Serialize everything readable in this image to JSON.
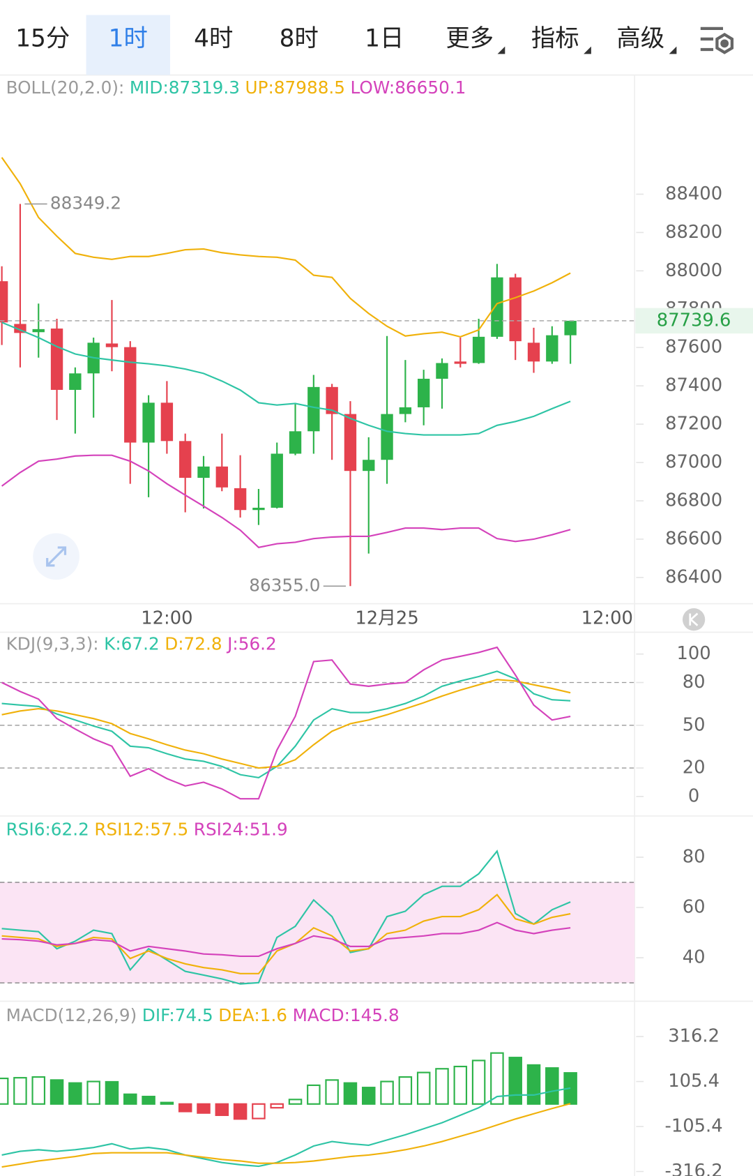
{
  "tabs": {
    "items": [
      "15分",
      "1时",
      "4时",
      "8时",
      "1日",
      "更多",
      "指标",
      "高级"
    ],
    "selected": 1
  },
  "chart_data": [
    {
      "type": "candlestick",
      "indicator": "BOLL(20,2.0):",
      "xlim": [
        -0.1,
        34.5
      ],
      "xticks": [
        {
          "value": 9,
          "label": "12:00"
        },
        {
          "value": 21,
          "label": "12月25"
        },
        {
          "value": 33,
          "label": "12:00"
        }
      ],
      "ylim": [
        86263,
        89022
      ],
      "yticks": [
        86400,
        86600,
        86800,
        87000,
        87200,
        87400,
        87600,
        87800,
        88000,
        88200,
        88400
      ],
      "up_color": "#2db34a",
      "down_color": "#e5414e",
      "open": [
        87946,
        87723,
        87680,
        87699,
        87379,
        87465,
        87621,
        87602,
        87104,
        87312,
        87112,
        86920,
        86979,
        86866,
        86752,
        86764,
        87046,
        87163,
        87394,
        87253,
        86956,
        87014,
        87253,
        87288,
        87437,
        87527,
        87519,
        87656,
        87966,
        87625,
        87527,
        87664
      ],
      "high": [
        88024,
        88349.2,
        87829,
        87750,
        87496,
        87652,
        87848,
        87633,
        87351,
        87425,
        87151,
        87034,
        87151,
        87038,
        86862,
        87104,
        87308,
        87457,
        87410,
        87320,
        87132,
        87660,
        87535,
        87484,
        87543,
        87652,
        87750,
        88036,
        87985,
        87703,
        87711,
        87739.6
      ],
      "low": [
        87613,
        87496,
        87547,
        87222,
        87151,
        87234,
        87476,
        86889,
        86819,
        87046,
        86740,
        86760,
        86850,
        86713,
        86674,
        86760,
        87038,
        87046,
        87014,
        86355.0,
        86525,
        86889,
        87210,
        87194,
        87281,
        87496,
        87515,
        87645,
        87535,
        87468,
        87515,
        87515
      ],
      "close": [
        87731,
        87676,
        87696,
        87379,
        87465,
        87625,
        87602,
        87104,
        87312,
        87112,
        86920,
        86979,
        86870,
        86752,
        86764,
        87046,
        87163,
        87394,
        87253,
        86956,
        87014,
        87253,
        87288,
        87437,
        87519,
        87515,
        87656,
        87966,
        87633,
        87527,
        87664,
        87739.6
      ],
      "series": [
        {
          "name": "MID:87319.3",
          "color": "#2ec4a5",
          "values": [
            87731,
            87692,
            87652,
            87605,
            87566,
            87547,
            87535,
            87523,
            87515,
            87504,
            87488,
            87465,
            87425,
            87378,
            87312,
            87300,
            87308,
            87288,
            87273,
            87230,
            87194,
            87163,
            87151,
            87144,
            87144,
            87144,
            87151,
            87194,
            87214,
            87241,
            87281,
            87319.3
          ]
        },
        {
          "name": "UP:87988.5",
          "color": "#f0b10a",
          "values": [
            88592,
            88455,
            88279,
            88181,
            88091,
            88071,
            88060,
            88075,
            88075,
            88091,
            88110,
            88114,
            88095,
            88083,
            88075,
            88071,
            88056,
            87977,
            87966,
            87856,
            87778,
            87711,
            87660,
            87672,
            87680,
            87656,
            87692,
            87829,
            87860,
            87895,
            87938,
            87988.5
          ]
        },
        {
          "name": "LOW:86650.1",
          "color": "#d442bb",
          "values": [
            86877,
            86948,
            87007,
            87018,
            87034,
            87038,
            87038,
            87007,
            86956,
            86889,
            86830,
            86772,
            86713,
            86647,
            86557,
            86576,
            86584,
            86603,
            86611,
            86615,
            86615,
            86635,
            86658,
            86658,
            86650,
            86658,
            86658,
            86603,
            86588,
            86600,
            86623,
            86650.1
          ]
        }
      ],
      "max_label": 88349.2,
      "min_label": {
        "value": 86355.0,
        "label": "86355.0"
      },
      "last_price": 87739.6
    },
    {
      "type": "line",
      "indicator": "KDJ(9,3,3):",
      "ylim": [
        -13.7,
        115.3
      ],
      "yticks": [
        0,
        20,
        50,
        80,
        100
      ],
      "levels": [
        20,
        50,
        80
      ],
      "series": [
        {
          "name": "K:67.2",
          "color": "#2ec4a5",
          "values": [
            65.3,
            64.2,
            63.2,
            57.9,
            53.7,
            49.5,
            45.8,
            35.3,
            34.2,
            30.0,
            26.3,
            24.7,
            21.1,
            15.3,
            13.2,
            21.1,
            35.3,
            53.7,
            61.6,
            58.9,
            58.9,
            61.6,
            65.3,
            70.5,
            77.4,
            81.1,
            84.2,
            87.9,
            82.6,
            72.1,
            67.9,
            67.2
          ]
        },
        {
          "name": "D:72.8",
          "color": "#f0b10a",
          "values": [
            57.4,
            60.0,
            61.6,
            60.0,
            57.4,
            54.7,
            51.1,
            44.2,
            40.5,
            36.3,
            32.6,
            30.0,
            26.3,
            23.2,
            20.0,
            21.1,
            25.8,
            36.3,
            45.8,
            51.1,
            53.7,
            57.4,
            61.6,
            65.8,
            70.5,
            74.7,
            78.4,
            82.1,
            81.1,
            78.4,
            75.8,
            72.8
          ]
        },
        {
          "name": "J:56.2",
          "color": "#d442bb",
          "values": [
            80.0,
            73.7,
            68.4,
            54.7,
            47.4,
            40.5,
            35.3,
            14.2,
            19.5,
            12.6,
            7.4,
            10.0,
            5.3,
            -1.6,
            -1.6,
            32.6,
            56.3,
            94.7,
            95.8,
            78.9,
            77.4,
            78.9,
            80.0,
            88.9,
            95.8,
            98.4,
            101.1,
            104.7,
            85.3,
            64.2,
            53.7,
            56.2
          ]
        }
      ]
    },
    {
      "type": "line",
      "ylim": [
        22.7,
        96.4
      ],
      "yticks": [
        40,
        60,
        80
      ],
      "band": [
        30,
        70
      ],
      "band_color": "#fbe4f4",
      "series": [
        {
          "name": "RSI6:62.2",
          "color": "#2ec4a5",
          "values": [
            51.6,
            51.0,
            50.4,
            43.6,
            46.6,
            51.0,
            49.6,
            35.2,
            43.6,
            39.1,
            34.6,
            33.1,
            31.6,
            29.6,
            30.1,
            48.1,
            52.5,
            63.0,
            56.4,
            42.1,
            43.6,
            56.4,
            58.5,
            65.1,
            68.4,
            68.4,
            73.4,
            82.4,
            57.6,
            53.4,
            59.1,
            62.2
          ]
        },
        {
          "name": "RSI12:57.5",
          "color": "#f0b10a",
          "values": [
            48.7,
            48.1,
            47.5,
            44.5,
            45.7,
            48.1,
            47.5,
            39.7,
            42.7,
            39.7,
            37.6,
            36.1,
            35.2,
            33.7,
            33.7,
            42.7,
            45.7,
            51.9,
            48.7,
            42.7,
            43.6,
            49.6,
            51.0,
            54.6,
            56.4,
            56.4,
            59.1,
            65.1,
            55.5,
            53.4,
            56.1,
            57.5
          ]
        },
        {
          "name": "RSI24:51.9",
          "color": "#d442bb",
          "values": [
            47.5,
            47.2,
            46.6,
            45.1,
            45.7,
            47.2,
            46.6,
            42.7,
            44.5,
            43.6,
            42.7,
            41.5,
            41.2,
            40.6,
            40.6,
            43.6,
            45.7,
            48.7,
            47.5,
            44.5,
            44.5,
            47.5,
            48.1,
            48.7,
            49.6,
            49.6,
            51.0,
            54.0,
            51.0,
            49.6,
            51.0,
            51.9
          ]
        }
      ]
    },
    {
      "type": "macd",
      "indicator": "MACD(12,26,9)",
      "ylim": [
        -337.3,
        481.4
      ],
      "yticks": [
        -316.2,
        -105.4,
        105.4,
        316.2
      ],
      "up_color": "#2db34a",
      "down_color": "#e5414e",
      "series": [
        {
          "name": "DIF:74.5",
          "color": "#2ec4a5",
          "values": [
            -238.9,
            -221.4,
            -214.3,
            -221.4,
            -214.3,
            -203.8,
            -186.2,
            -210.8,
            -203.8,
            -214.3,
            -238.9,
            -256.5,
            -274.1,
            -284.6,
            -291.6,
            -274.1,
            -238.9,
            -196.8,
            -175.7,
            -186.2,
            -193.3,
            -168.7,
            -144.1,
            -116.0,
            -87.8,
            -52.7,
            -17.6,
            35.1,
            42.2,
            42.2,
            59.8,
            74.5
          ]
        },
        {
          "name": "DEA:1.6",
          "color": "#f0b10a",
          "values": [
            -295.2,
            -281.1,
            -267.0,
            -256.5,
            -246.0,
            -231.9,
            -228.4,
            -228.4,
            -228.4,
            -228.4,
            -238.9,
            -249.5,
            -260.0,
            -267.0,
            -277.6,
            -277.6,
            -274.1,
            -267.0,
            -256.5,
            -246.0,
            -238.9,
            -228.4,
            -214.3,
            -196.8,
            -175.7,
            -151.1,
            -126.5,
            -98.4,
            -70.3,
            -45.7,
            -21.1,
            1.6
          ]
        }
      ],
      "histogram": {
        "name": "MACD:145.8",
        "color": "#d442bb",
        "values": [
          120,
          123,
          126.5,
          112.4,
          98.4,
          105.4,
          104,
          45.7,
          35.1,
          7,
          -35.1,
          -42.2,
          -52.7,
          -70.3,
          -68,
          -17.6,
          21.1,
          87.8,
          112.4,
          98.4,
          77.3,
          105.4,
          126.5,
          147.6,
          165.1,
          175.7,
          203.8,
          238.9,
          217.8,
          182.7,
          168.7,
          145.8
        ]
      }
    }
  ]
}
